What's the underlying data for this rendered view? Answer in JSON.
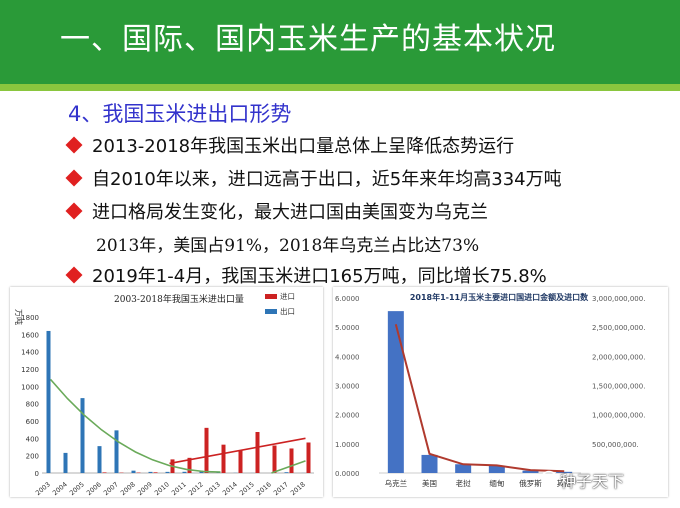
{
  "header": {
    "title": "一、国际、国内玉米生产的基本状况"
  },
  "subtitle": "4、我国玉米进出口形势",
  "bullets": [
    "2013-2018年我国玉米出口量总体上呈降低态势运行",
    "自2010年以来，进口远高于出口，近5年来年均高334万吨",
    "进口格局发生变化，最大进口国由美国变为乌克兰",
    "2019年1-4月，我国玉米进口165万吨，同比增长75.8%"
  ],
  "sub_line": "2013年，美国占91%，2018年乌克兰占比达73%",
  "watermark": "种子天下",
  "colors": {
    "header": "#2a9a38",
    "import": "#cc2222",
    "export": "#2e75b6",
    "trend": "#6aaa5a",
    "bar2": "#4472c4",
    "line2": "#b03a2e"
  },
  "chart_data": [
    {
      "type": "bar",
      "title": "2003-2018年我国玉米进出口量",
      "ylabel": "万吨",
      "ylim": [
        0,
        1800
      ],
      "yticks": [
        "1800",
        "1600",
        "1400",
        "1200",
        "1000",
        "800",
        "600",
        "400",
        "200",
        "0"
      ],
      "categories": [
        "2003",
        "2004",
        "2005",
        "2006",
        "2007",
        "2008",
        "2009",
        "2010",
        "2011",
        "2012",
        "2013",
        "2014",
        "2015",
        "2016",
        "2017",
        "2018"
      ],
      "series": [
        {
          "name": "进口",
          "values": [
            0,
            0,
            0,
            7,
            4,
            5,
            8,
            157,
            175,
            521,
            327,
            260,
            473,
            317,
            283,
            352
          ]
        },
        {
          "name": "出口",
          "values": [
            1639,
            232,
            864,
            310,
            492,
            27,
            13,
            13,
            14,
            26,
            8,
            2,
            1,
            0,
            9,
            1
          ]
        }
      ],
      "trendlines": [
        {
          "of": "出口",
          "from": [
            0,
            1080
          ],
          "to": [
            10,
            10
          ]
        },
        {
          "of": "进口",
          "from": [
            7,
            110
          ],
          "to": [
            15,
            400
          ]
        },
        {
          "of": "出口",
          "from": [
            13,
            0
          ],
          "to": [
            15,
            140
          ]
        }
      ],
      "legend": "top-right"
    },
    {
      "type": "bar",
      "title": "2018年1-11月玉米主要进口国进口金额及进口数",
      "categories": [
        "乌克兰",
        "美国",
        "老挝",
        "缅甸",
        "俄罗斯",
        "其他"
      ],
      "left_axis": {
        "ylim": [
          0,
          6
        ],
        "ticks": [
          "6.0000",
          "5.0000",
          "4.0000",
          "3.0000",
          "2.0000",
          "1.0000",
          "0.0000"
        ]
      },
      "right_axis": {
        "ylim": [
          0,
          3000000000
        ],
        "ticks": [
          "3,000,000,000.",
          "2,500,000,000.",
          "2,000,000,000.",
          "1,500,000,000.",
          "1,000,000,000.",
          "500,000,000.",
          ""
        ]
      },
      "bars": [
        5.55,
        0.62,
        0.3,
        0.25,
        0.08,
        0.04
      ],
      "line": [
        2550000000,
        330000000,
        150000000,
        130000000,
        50000000,
        30000000
      ]
    }
  ]
}
